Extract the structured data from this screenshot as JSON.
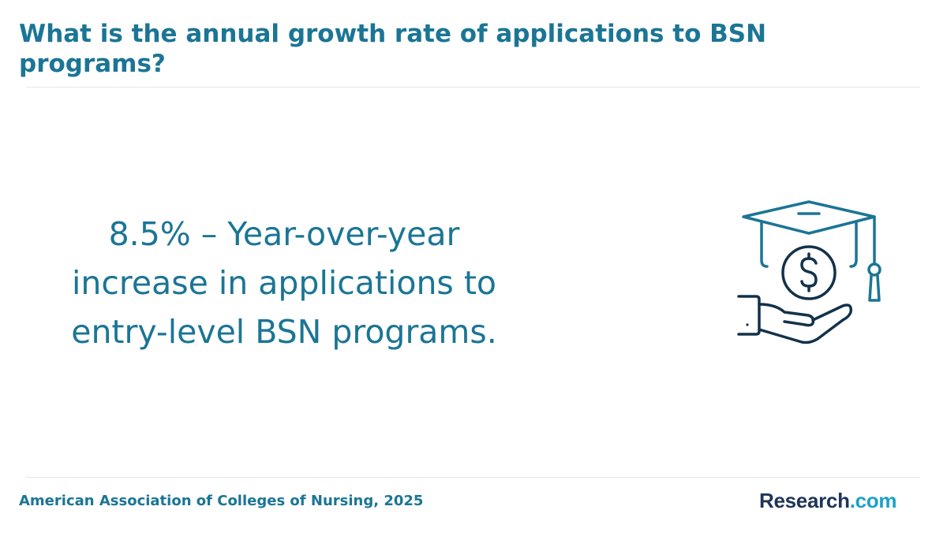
{
  "title": "What is the annual growth rate of applications to BSN programs?",
  "statement": "8.5% – Year-over-year increase in applications to entry-level BSN programs.",
  "icon": "graduation-cap-money-hand-icon",
  "source": "American Association of Colleges of Nursing, 2025",
  "logo": {
    "part1": "Research",
    "part2": ".com"
  },
  "colors": {
    "accent": "#1b7595",
    "brand_dark": "#1d3557",
    "brand_light": "#1da1c8",
    "icon_teal": "#1b7595",
    "icon_dark": "#12324a"
  }
}
